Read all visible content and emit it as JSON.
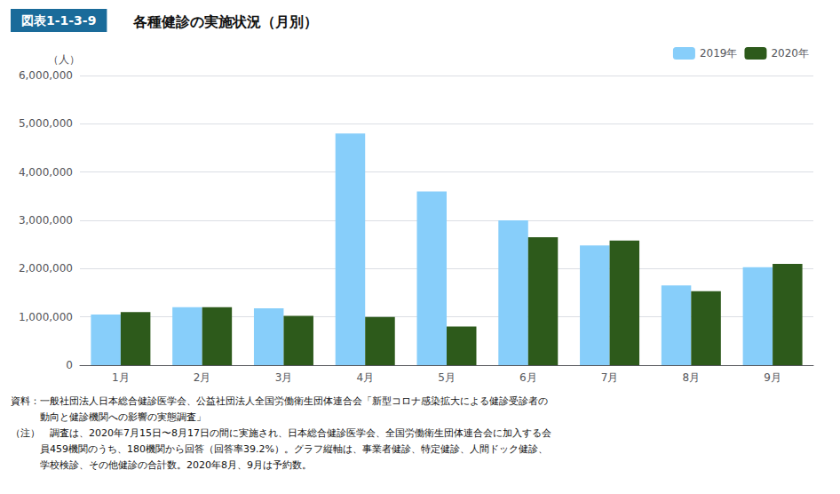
{
  "chart_data": {
    "type": "bar",
    "subtitle": "図表1-1-3-9",
    "title": "各種健診の実施状況（月別）",
    "ylabel": "（人）",
    "categories": [
      "1月",
      "2月",
      "3月",
      "4月",
      "5月",
      "6月",
      "7月",
      "8月",
      "9月"
    ],
    "series": [
      {
        "name": "2019年",
        "color": "#87CEFA",
        "values": [
          1050000,
          1200000,
          1180000,
          4800000,
          3600000,
          3000000,
          2480000,
          1650000,
          2030000
        ]
      },
      {
        "name": "2020年",
        "color": "#2d5a1b",
        "values": [
          1100000,
          1200000,
          1020000,
          1000000,
          800000,
          2650000,
          2580000,
          1530000,
          2100000
        ]
      }
    ],
    "ylim": [
      0,
      6000000
    ],
    "yticks": [
      0,
      {
        "value": 1000000,
        "label": "1,000,000"
      },
      {
        "value": 2000000,
        "label": "2,000,000"
      },
      {
        "value": 3000000,
        "label": "3,000,000"
      },
      {
        "value": 4000000,
        "label": "4,000,000"
      },
      {
        "value": 5000000,
        "label": "5,000,000"
      },
      {
        "value": 6000000,
        "label": "6,000,000"
      }
    ],
    "grid": true,
    "legend": "upper right",
    "annotations": [
      "資料：一般社団法人日本総合健診医学会、公益社団法人全国労働衛生団体連合会「新型コロナ感染拡大による健診受診者の",
      "　　　動向と健診機関への影響の実態調査」",
      "（注）　調査は、2020年7月15日〜8月17日の間に実施され、日本総合健診医学会、全国労働衛生団体連合会に加入する会",
      "　　　員459機関のうち、180機関から回答（回答率39.2%）。グラフ縦軸は、事業者健診、特定健診、人間ドック健診、",
      "　　　学校検診、その他健診の合計数。2020年8月、9月は予約数。"
    ]
  }
}
